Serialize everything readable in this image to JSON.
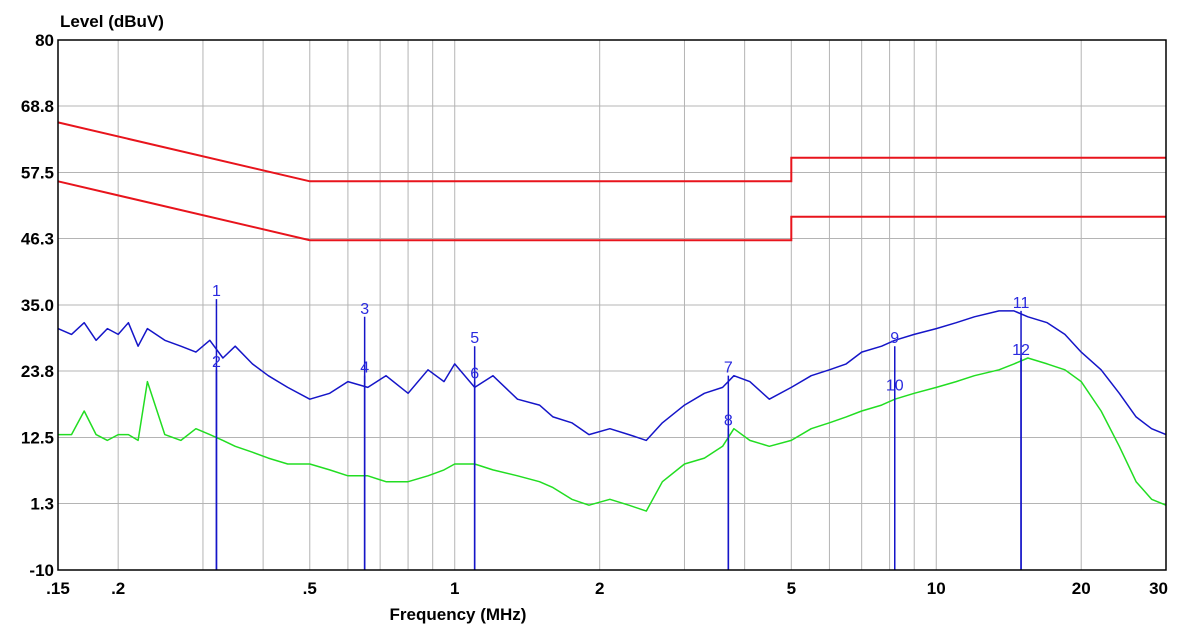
{
  "chart_data": {
    "type": "line",
    "ylabel": "Level (dBuV)",
    "xlabel": "Frequency (MHz)",
    "x_scale": "log",
    "xlim": [
      0.15,
      30
    ],
    "ylim": [
      -10,
      80
    ],
    "grid": true,
    "y_ticks": [
      {
        "v": 80,
        "label": "80"
      },
      {
        "v": 68.8,
        "label": "68.8"
      },
      {
        "v": 57.5,
        "label": "57.5"
      },
      {
        "v": 46.3,
        "label": "46.3"
      },
      {
        "v": 35.0,
        "label": "35.0"
      },
      {
        "v": 23.8,
        "label": "23.8"
      },
      {
        "v": 12.5,
        "label": "12.5"
      },
      {
        "v": 1.3,
        "label": "1.3"
      },
      {
        "v": -10,
        "label": "-10"
      }
    ],
    "x_ticks": [
      {
        "v": 0.15,
        "label": ".15"
      },
      {
        "v": 0.2,
        "label": ".2"
      },
      {
        "v": 0.5,
        "label": ".5"
      },
      {
        "v": 1,
        "label": "1"
      },
      {
        "v": 2,
        "label": "2"
      },
      {
        "v": 5,
        "label": "5"
      },
      {
        "v": 10,
        "label": "10"
      },
      {
        "v": 20,
        "label": "20"
      },
      {
        "v": 30,
        "label": "30"
      }
    ],
    "x_grid": [
      0.15,
      0.2,
      0.3,
      0.4,
      0.5,
      0.6,
      0.7,
      0.8,
      0.9,
      1,
      2,
      3,
      4,
      5,
      6,
      7,
      8,
      9,
      10,
      20,
      30
    ],
    "limit_lines": [
      {
        "color": "#e8141c",
        "x": [
          0.15,
          0.5,
          5,
          5,
          30
        ],
        "y": [
          66,
          56,
          56,
          60,
          60
        ]
      },
      {
        "color": "#e8141c",
        "x": [
          0.15,
          0.5,
          5,
          5,
          30
        ],
        "y": [
          56,
          46,
          46,
          50,
          50
        ]
      }
    ],
    "series": [
      {
        "color": "#1515c8",
        "x": [
          0.15,
          0.16,
          0.17,
          0.18,
          0.19,
          0.2,
          0.21,
          0.22,
          0.23,
          0.25,
          0.27,
          0.29,
          0.31,
          0.33,
          0.35,
          0.38,
          0.41,
          0.45,
          0.5,
          0.55,
          0.6,
          0.66,
          0.72,
          0.8,
          0.88,
          0.95,
          1.0,
          1.1,
          1.2,
          1.35,
          1.5,
          1.6,
          1.75,
          1.9,
          2.1,
          2.3,
          2.5,
          2.7,
          3.0,
          3.3,
          3.6,
          3.8,
          4.1,
          4.5,
          5.0,
          5.5,
          6.0,
          6.5,
          7.0,
          7.7,
          8.2,
          9.0,
          10.0,
          11.0,
          12.0,
          13.5,
          14.5,
          15.5,
          17.0,
          18.5,
          20.0,
          22.0,
          24.0,
          26.0,
          28.0,
          30.0
        ],
        "y": [
          31,
          30,
          32,
          29,
          31,
          30,
          32,
          28,
          31,
          29,
          28,
          27,
          29,
          26,
          28,
          25,
          23,
          21,
          19,
          20,
          22,
          21,
          23,
          20,
          24,
          22,
          25,
          21,
          23,
          19,
          18,
          16,
          15,
          13,
          14,
          13,
          12,
          15,
          18,
          20,
          21,
          23,
          22,
          19,
          21,
          23,
          24,
          25,
          27,
          28,
          29,
          30,
          31,
          32,
          33,
          34,
          34,
          33,
          32,
          30,
          27,
          24,
          20,
          16,
          14,
          13
        ]
      },
      {
        "color": "#22dd22",
        "x": [
          0.15,
          0.16,
          0.17,
          0.18,
          0.19,
          0.2,
          0.21,
          0.22,
          0.23,
          0.25,
          0.27,
          0.29,
          0.31,
          0.33,
          0.35,
          0.38,
          0.41,
          0.45,
          0.5,
          0.55,
          0.6,
          0.66,
          0.72,
          0.8,
          0.88,
          0.95,
          1.0,
          1.1,
          1.2,
          1.35,
          1.5,
          1.6,
          1.75,
          1.9,
          2.1,
          2.3,
          2.5,
          2.7,
          3.0,
          3.3,
          3.6,
          3.8,
          4.1,
          4.5,
          5.0,
          5.5,
          6.0,
          6.5,
          7.0,
          7.7,
          8.2,
          9.0,
          10.0,
          11.0,
          12.0,
          13.5,
          14.5,
          15.5,
          17.0,
          18.5,
          20.0,
          22.0,
          24.0,
          26.0,
          28.0,
          30.0
        ],
        "y": [
          13,
          13,
          17,
          13,
          12,
          13,
          13,
          12,
          22,
          13,
          12,
          14,
          13,
          12,
          11,
          10,
          9,
          8,
          8,
          7,
          6,
          6,
          5,
          5,
          6,
          7,
          8,
          8,
          7,
          6,
          5,
          4,
          2,
          1,
          2,
          1,
          0,
          5,
          8,
          9,
          11,
          14,
          12,
          11,
          12,
          14,
          15,
          16,
          17,
          18,
          19,
          20,
          21,
          22,
          23,
          24,
          25,
          26,
          25,
          24,
          22,
          17,
          11,
          5,
          2,
          1
        ]
      }
    ],
    "markers": [
      {
        "x": 0.32,
        "top": 36,
        "label": "1"
      },
      {
        "x": 0.32,
        "top": 24,
        "label": "2"
      },
      {
        "x": 0.65,
        "top": 33,
        "label": "3"
      },
      {
        "x": 0.65,
        "top": 23,
        "label": "4"
      },
      {
        "x": 1.1,
        "top": 28,
        "label": "5"
      },
      {
        "x": 1.1,
        "top": 22,
        "label": "6"
      },
      {
        "x": 3.7,
        "top": 23,
        "label": "7"
      },
      {
        "x": 3.7,
        "top": 14,
        "label": "8"
      },
      {
        "x": 8.2,
        "top": 28,
        "label": "9"
      },
      {
        "x": 8.2,
        "top": 20,
        "label": "10"
      },
      {
        "x": 15.0,
        "top": 34,
        "label": "11"
      },
      {
        "x": 15.0,
        "top": 26,
        "label": "12"
      }
    ]
  }
}
